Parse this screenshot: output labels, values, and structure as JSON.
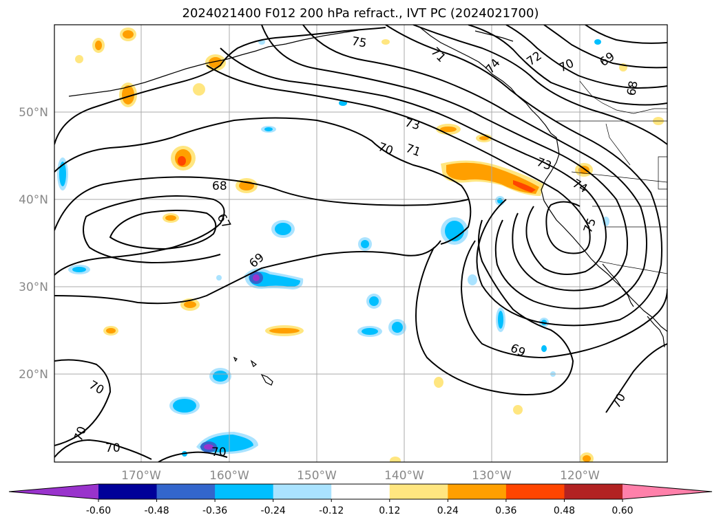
{
  "title": "2024021400 F012 200 hPa refract., IVT PC (2024021700)",
  "lat_ticks": [
    "50°N",
    "40°N",
    "30°N",
    "20°N"
  ],
  "lon_ticks": [
    "170°W",
    "160°W",
    "150°W",
    "140°W",
    "130°W",
    "120°W"
  ],
  "colorbar": {
    "levels": [
      "-0.60",
      "-0.48",
      "-0.36",
      "-0.24",
      "-0.12",
      "0.12",
      "0.24",
      "0.36",
      "0.48",
      "0.60"
    ],
    "colors": [
      "#9933cc",
      "#000099",
      "#3366cc",
      "#00bfff",
      "#aae3ff",
      "#ffffff",
      "#ffe680",
      "#ff9f00",
      "#ff4500",
      "#b22222",
      "#ff80aa"
    ]
  },
  "contour_labels": [
    {
      "text": "75",
      "key": "c75a"
    },
    {
      "text": "71",
      "key": "c71a"
    },
    {
      "text": "74",
      "key": "c74a"
    },
    {
      "text": "72",
      "key": "c72a"
    },
    {
      "text": "70",
      "key": "c70a"
    },
    {
      "text": "69",
      "key": "c69a"
    },
    {
      "text": "68",
      "key": "c68a"
    },
    {
      "text": "73",
      "key": "c73a"
    },
    {
      "text": "70",
      "key": "c70b"
    },
    {
      "text": "71",
      "key": "c71b"
    },
    {
      "text": "73",
      "key": "c73b"
    },
    {
      "text": "74",
      "key": "c74b"
    },
    {
      "text": "68",
      "key": "c68b"
    },
    {
      "text": "67",
      "key": "c67"
    },
    {
      "text": "75",
      "key": "c75b"
    },
    {
      "text": "69",
      "key": "c69b"
    },
    {
      "text": "69",
      "key": "c69c"
    },
    {
      "text": "70",
      "key": "c70c"
    },
    {
      "text": "70",
      "key": "c70d"
    },
    {
      "text": "70",
      "key": "c70e"
    },
    {
      "text": "70",
      "key": "c70f"
    },
    {
      "text": "70",
      "key": "c70g"
    }
  ]
}
